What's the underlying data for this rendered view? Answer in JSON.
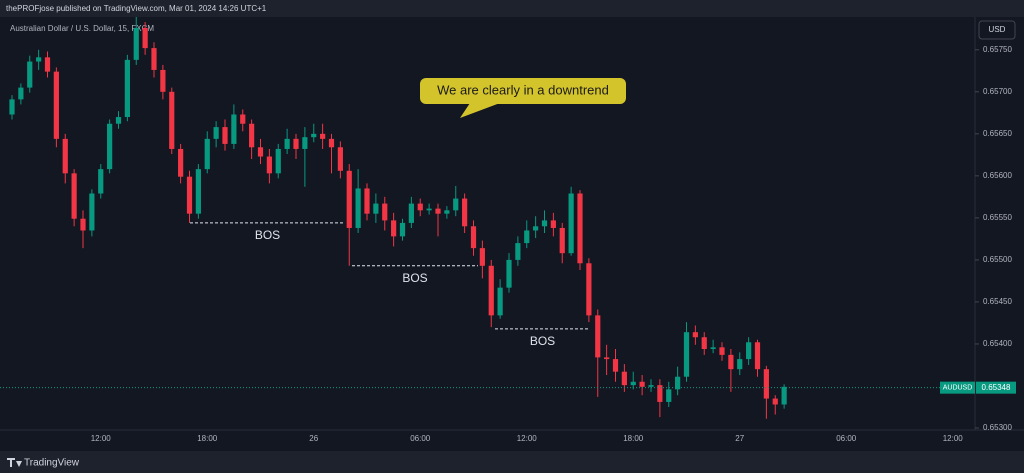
{
  "header": {
    "publisher": "thePROFjose published on TradingView.com, Mar 01, 2024 14:26 UTC+1",
    "symbol_title": "Australian Dollar / U.S. Dollar, 15, FXCM",
    "currency_button": "USD"
  },
  "footer": {
    "brand": "TradingView"
  },
  "chart_data": {
    "type": "candlestick",
    "up_color": "#089981",
    "down_color": "#f23645",
    "categories": [
      null,
      null,
      null,
      null,
      null,
      null,
      null,
      null,
      null,
      null,
      "12:00",
      null,
      null,
      null,
      null,
      null,
      null,
      null,
      null,
      null,
      null,
      null,
      "18:00",
      null,
      null,
      null,
      null,
      null,
      null,
      null,
      null,
      null,
      null,
      null,
      "26",
      null,
      null,
      null,
      null,
      null,
      null,
      null,
      null,
      null,
      null,
      null,
      "06:00",
      null,
      null,
      null,
      null,
      null,
      null,
      null,
      null,
      null,
      null,
      null,
      "12:00",
      null,
      null,
      null,
      null,
      null,
      null,
      null,
      null,
      null,
      null,
      null,
      "18:00",
      null,
      null,
      null,
      null,
      null,
      null,
      null,
      null,
      null,
      null,
      null,
      "27",
      null,
      null,
      null,
      null,
      null,
      null,
      null,
      null,
      null,
      null,
      null,
      "06:00",
      null,
      null,
      null,
      null,
      null,
      null,
      null,
      null,
      null,
      null,
      null,
      "12:00",
      null
    ],
    "open": [
      0.65673,
      0.65691,
      0.65705,
      0.65736,
      0.65741,
      0.65724,
      0.65644,
      0.65603,
      0.65549,
      0.65535,
      0.65579,
      0.65608,
      0.65662,
      0.6567,
      0.65738,
      0.65776,
      0.65752,
      0.65726,
      0.657,
      0.65632,
      0.65599,
      0.65555,
      0.65608,
      0.65644,
      0.65658,
      0.65638,
      0.65673,
      0.65662,
      0.65634,
      0.65623,
      0.65603,
      0.65632,
      0.65644,
      0.65632,
      0.65646,
      0.6565,
      0.65644,
      0.65634,
      0.65606,
      0.65538,
      0.65585,
      0.65555,
      0.65567,
      0.65547,
      0.65528,
      0.65544,
      0.65567,
      0.65559,
      0.65561,
      0.65555,
      0.65559,
      0.65573,
      0.6554,
      0.65514,
      0.65493,
      0.65434,
      0.65467,
      0.655,
      0.6552,
      0.65535,
      0.6554,
      0.65547,
      0.65538,
      0.65508,
      0.65579,
      0.65496,
      0.65434,
      0.65384,
      0.65382,
      0.65367,
      0.65351,
      0.65355,
      0.65349,
      0.65351,
      0.65331,
      0.65346,
      0.65361,
      0.65414,
      0.65408,
      0.65394,
      0.65396,
      0.65387,
      0.6537,
      0.65382,
      0.65402,
      0.6537,
      0.65335,
      0.65328,
      null,
      null,
      null,
      null,
      null,
      null,
      null,
      null,
      null,
      null,
      null,
      null,
      null,
      null,
      null,
      null,
      null,
      null,
      null,
      null
    ],
    "high": [
      0.65696,
      0.6571,
      0.65743,
      0.6575,
      0.65748,
      0.65729,
      0.6565,
      0.65608,
      0.65559,
      0.65584,
      0.65614,
      0.65667,
      0.65677,
      0.65744,
      0.65789,
      0.65783,
      0.65759,
      0.65732,
      0.65705,
      0.65638,
      0.65606,
      0.65614,
      0.65653,
      0.65665,
      0.65667,
      0.65685,
      0.65679,
      0.65667,
      0.65644,
      0.65632,
      0.65638,
      0.65656,
      0.6565,
      0.65658,
      0.65662,
      0.65662,
      0.6565,
      0.65641,
      0.65614,
      0.65608,
      0.65591,
      0.65579,
      0.65575,
      0.65556,
      0.65549,
      0.65575,
      0.65573,
      0.65567,
      0.65567,
      0.65564,
      0.65588,
      0.65579,
      0.65547,
      0.65523,
      0.655,
      0.65477,
      0.65508,
      0.65528,
      0.65547,
      0.65552,
      0.65559,
      0.65556,
      0.65544,
      0.65587,
      0.65583,
      0.65502,
      0.65441,
      0.65399,
      0.65394,
      0.65376,
      0.65367,
      0.65363,
      0.65358,
      0.65358,
      0.65355,
      0.65373,
      0.65426,
      0.65422,
      0.65414,
      0.65405,
      0.65402,
      0.65394,
      0.6539,
      0.65408,
      0.65405,
      0.65374,
      0.65339,
      0.65352,
      null,
      null,
      null,
      null,
      null,
      null,
      null,
      null,
      null,
      null,
      null,
      null,
      null,
      null,
      null,
      null,
      null,
      null,
      null,
      null
    ],
    "low": [
      0.65667,
      0.65685,
      0.65699,
      0.65726,
      0.65717,
      0.65634,
      0.65591,
      0.6554,
      0.65514,
      0.65528,
      0.65573,
      0.65603,
      0.65656,
      0.65665,
      0.65732,
      0.65744,
      0.65717,
      0.65691,
      0.65626,
      0.65591,
      0.65544,
      0.65549,
      0.65603,
      0.65634,
      0.6563,
      0.65632,
      0.65653,
      0.6562,
      0.65614,
      0.65591,
      0.65597,
      0.65626,
      0.6562,
      0.65587,
      0.6564,
      0.65632,
      0.65603,
      0.65597,
      0.65493,
      0.65532,
      0.65547,
      0.65544,
      0.65535,
      0.65516,
      0.65523,
      0.65538,
      0.65552,
      0.65554,
      0.65528,
      0.65549,
      0.65552,
      0.65532,
      0.65505,
      0.65478,
      0.6542,
      0.6543,
      0.65461,
      0.65493,
      0.65514,
      0.65526,
      0.65532,
      0.65528,
      0.65496,
      0.65505,
      0.65488,
      0.65426,
      0.65337,
      0.65363,
      0.65355,
      0.65343,
      0.65346,
      0.65339,
      0.65343,
      0.65313,
      0.65325,
      0.65339,
      0.65355,
      0.65399,
      0.65387,
      0.65389,
      0.6538,
      0.65343,
      0.65363,
      0.65375,
      0.65361,
      0.65311,
      0.65316,
      0.65323,
      null,
      null,
      null,
      null,
      null,
      null,
      null,
      null,
      null,
      null,
      null,
      null,
      null,
      null,
      null,
      null,
      null,
      null,
      null,
      null
    ],
    "close": [
      0.65691,
      0.65705,
      0.65736,
      0.65741,
      0.65724,
      0.65644,
      0.65603,
      0.65549,
      0.65535,
      0.65579,
      0.65608,
      0.65662,
      0.6567,
      0.65738,
      0.65776,
      0.65752,
      0.65726,
      0.657,
      0.65632,
      0.65599,
      0.65555,
      0.65608,
      0.65644,
      0.65658,
      0.65638,
      0.65673,
      0.65662,
      0.65634,
      0.65623,
      0.65603,
      0.65632,
      0.65644,
      0.65632,
      0.65646,
      0.6565,
      0.65644,
      0.65634,
      0.65606,
      0.65538,
      0.65585,
      0.65555,
      0.65567,
      0.65547,
      0.65528,
      0.65544,
      0.65567,
      0.65559,
      0.65561,
      0.65555,
      0.65559,
      0.65573,
      0.6554,
      0.65514,
      0.65493,
      0.65434,
      0.65467,
      0.655,
      0.6552,
      0.65535,
      0.6554,
      0.65547,
      0.65538,
      0.65508,
      0.65579,
      0.65496,
      0.65434,
      0.65384,
      0.65382,
      0.65367,
      0.65351,
      0.65355,
      0.65349,
      0.65351,
      0.65331,
      0.65346,
      0.65361,
      0.65414,
      0.65408,
      0.65394,
      0.65396,
      0.65387,
      0.6537,
      0.65382,
      0.65402,
      0.6537,
      0.65335,
      0.65328,
      0.65349,
      null,
      null,
      null,
      null,
      null,
      null,
      null,
      null,
      null,
      null,
      null,
      null,
      null,
      null,
      null,
      null,
      null,
      null,
      null,
      null
    ],
    "ylim": [
      0.653,
      0.65789
    ],
    "yticks": [
      {
        "value": 0.653,
        "label": "0.65300"
      },
      {
        "value": 0.654,
        "label": "0.65400"
      },
      {
        "value": 0.6545,
        "label": "0.65450"
      },
      {
        "value": 0.655,
        "label": "0.65500"
      },
      {
        "value": 0.6555,
        "label": "0.65550"
      },
      {
        "value": 0.656,
        "label": "0.65600"
      },
      {
        "value": 0.6565,
        "label": "0.65650"
      },
      {
        "value": 0.657,
        "label": "0.65700"
      },
      {
        "value": 0.6575,
        "label": "0.65750"
      }
    ],
    "grid": false,
    "last_price": {
      "symbol": "AUDUSD",
      "value": 0.65348,
      "color": "#089981"
    },
    "callout": "We are clearly in a downtrend",
    "levels": [
      {
        "text": "BOS",
        "value": 0.65544
      },
      {
        "text": "BOS",
        "value": 0.65493
      },
      {
        "text": "BOS",
        "value": 0.65418
      }
    ]
  }
}
